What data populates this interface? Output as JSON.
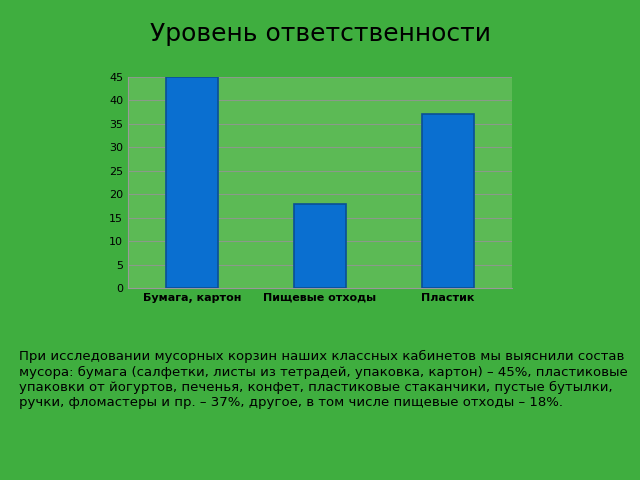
{
  "chart_data": {
    "type": "bar",
    "title": "Уровень ответственности",
    "categories": [
      "Бумага, картон",
      "Пищевые отходы",
      "Пластик"
    ],
    "values": [
      45,
      18,
      37
    ],
    "color": "#0a6fd0",
    "ylim": [
      0,
      45
    ],
    "yticks": [
      0,
      5,
      10,
      15,
      20,
      25,
      30,
      35,
      40,
      45
    ],
    "grid": true,
    "annotations": [
      "При исследовании мусорных корзин наших классных кабинетов мы выяснили состав мусора: бумага (салфетки, листы из тетрадей, упаковка, картон) – 45%, пластиковые упаковки от йогуртов, печенья, конфет, пластиковые стаканчики, пустые бутылки, ручки, фломастеры и пр. – 37%, другое, в том числе пищевые отходы – 18%."
    ]
  }
}
